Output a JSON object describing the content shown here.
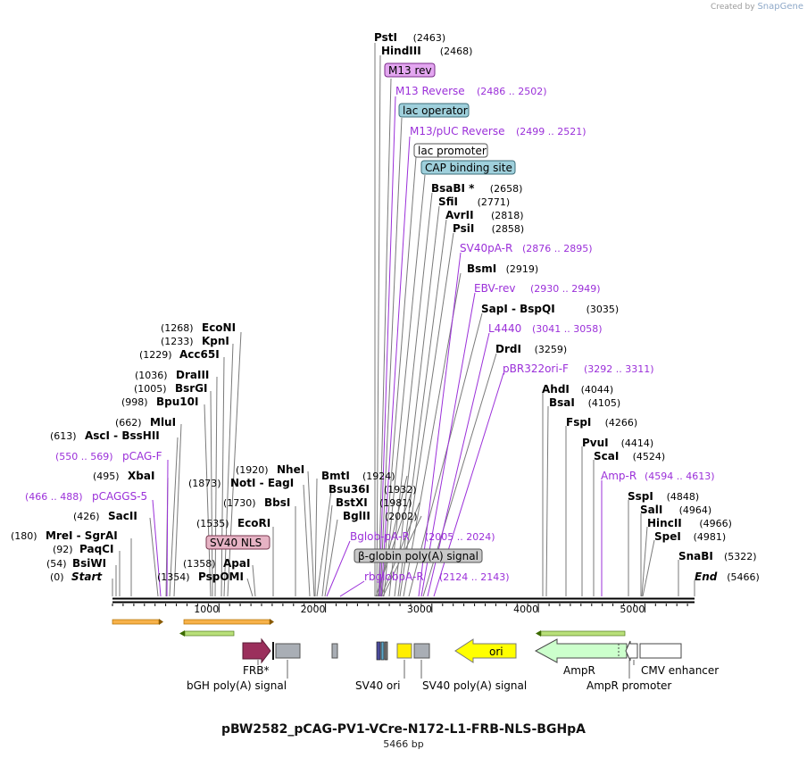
{
  "credit": {
    "prefix": "Created by",
    "brand": "SnapGene"
  },
  "plasmid": {
    "name": "pBW2582_pCAG-PV1-VCre-N172-L1-FRB-NLS-BGHpA",
    "length_label": "5466 bp",
    "length": 5466
  },
  "colors": {
    "enzyme": "#000000",
    "primer": "#9b30d9",
    "line": "#777777",
    "primer_line": "#9b30d9"
  },
  "ruler": {
    "ticks": [
      "1000",
      "2000",
      "3000",
      "4000",
      "5000"
    ]
  },
  "left_labels": [
    {
      "kind": "enzyme",
      "name": "Start",
      "pos": "(0)",
      "italic": true
    },
    {
      "kind": "enzyme",
      "name": "BsiWI",
      "pos": "(54)"
    },
    {
      "kind": "enzyme",
      "name": "PaqCI",
      "pos": "(92)"
    },
    {
      "kind": "enzyme",
      "name": "MreI  -  SgrAI",
      "pos": "(180)"
    },
    {
      "kind": "enzyme",
      "name": "SacII",
      "pos": "(426)"
    },
    {
      "kind": "primer",
      "name": "pCAGGS-5",
      "pos": "(466 .. 488)"
    },
    {
      "kind": "enzyme",
      "name": "XbaI",
      "pos": "(495)"
    },
    {
      "kind": "primer",
      "name": "pCAG-F",
      "pos": "(550 .. 569)"
    },
    {
      "kind": "enzyme",
      "name": "AscI  -  BssHII",
      "pos": "(613)"
    },
    {
      "kind": "enzyme",
      "name": "MluI",
      "pos": "(662)"
    },
    {
      "kind": "enzyme",
      "name": "Bpu10I",
      "pos": "(998)"
    },
    {
      "kind": "enzyme",
      "name": "BsrGI",
      "pos": "(1005)"
    },
    {
      "kind": "enzyme",
      "name": "DraIII",
      "pos": "(1036)"
    },
    {
      "kind": "enzyme",
      "name": "Acc65I",
      "pos": "(1229)"
    },
    {
      "kind": "enzyme",
      "name": "KpnI",
      "pos": "(1233)"
    },
    {
      "kind": "enzyme",
      "name": "EcoNI",
      "pos": "(1268)"
    },
    {
      "kind": "enzyme",
      "name": "PspOMI",
      "pos": "(1354)"
    },
    {
      "kind": "enzyme",
      "name": "ApaI",
      "pos": "(1358)"
    },
    {
      "kind": "enzyme",
      "name": "EcoRI",
      "pos": "(1535)"
    },
    {
      "kind": "enzyme",
      "name": "BbsI",
      "pos": "(1730)"
    },
    {
      "kind": "enzyme",
      "name": "NotI  -  EagI",
      "pos": "(1873)"
    },
    {
      "kind": "enzyme",
      "name": "NheI",
      "pos": "(1920)"
    }
  ],
  "center_labels": [
    {
      "kind": "enzyme",
      "name": "BmtI",
      "pos": "(1924)"
    },
    {
      "kind": "enzyme",
      "name": "Bsu36I",
      "pos": "(1932)"
    },
    {
      "kind": "enzyme",
      "name": "BstXI",
      "pos": "(1981)"
    },
    {
      "kind": "enzyme",
      "name": "BglII",
      "pos": "(2002)"
    }
  ],
  "right_labels": [
    {
      "kind": "enzyme",
      "name": "PstI",
      "pos": "(2463)"
    },
    {
      "kind": "enzyme",
      "name": "HindIII",
      "pos": "(2468)"
    },
    {
      "kind": "primer",
      "name": "M13 Reverse",
      "pos": "(2486 .. 2502)"
    },
    {
      "kind": "primer",
      "name": "M13/pUC Reverse",
      "pos": "(2499 .. 2521)"
    },
    {
      "kind": "enzyme",
      "name": "BsaBI *",
      "pos": "(2658)"
    },
    {
      "kind": "enzyme",
      "name": "SfiI",
      "pos": "(2771)"
    },
    {
      "kind": "enzyme",
      "name": "AvrII",
      "pos": "(2818)"
    },
    {
      "kind": "enzyme",
      "name": "PsiI",
      "pos": "(2858)"
    },
    {
      "kind": "primer",
      "name": "SV40pA-R",
      "pos": "(2876 .. 2895)"
    },
    {
      "kind": "enzyme",
      "name": "BsmI",
      "pos": "(2919)"
    },
    {
      "kind": "primer",
      "name": "EBV-rev",
      "pos": "(2930 .. 2949)"
    },
    {
      "kind": "enzyme",
      "name": "SapI  -  BspQI",
      "pos": "(3035)"
    },
    {
      "kind": "primer",
      "name": "L4440",
      "pos": "(3041 .. 3058)"
    },
    {
      "kind": "enzyme",
      "name": "DrdI",
      "pos": "(3259)"
    },
    {
      "kind": "primer",
      "name": "pBR322ori-F",
      "pos": "(3292 .. 3311)"
    },
    {
      "kind": "primer",
      "name": "Bglob-pA-R",
      "pos": "(2005 .. 2024)"
    },
    {
      "kind": "primer",
      "name": "rbglobpA-R",
      "pos": "(2124 .. 2143)"
    },
    {
      "kind": "enzyme",
      "name": "AhdI",
      "pos": "(4044)"
    },
    {
      "kind": "enzyme",
      "name": "BsaI",
      "pos": "(4105)"
    },
    {
      "kind": "enzyme",
      "name": "FspI",
      "pos": "(4266)"
    },
    {
      "kind": "enzyme",
      "name": "PvuI",
      "pos": "(4414)"
    },
    {
      "kind": "enzyme",
      "name": "ScaI",
      "pos": "(4524)"
    },
    {
      "kind": "primer",
      "name": "Amp-R",
      "pos": "(4594 .. 4613)"
    },
    {
      "kind": "enzyme",
      "name": "SspI",
      "pos": "(4848)"
    },
    {
      "kind": "enzyme",
      "name": "SalI",
      "pos": "(4964)"
    },
    {
      "kind": "enzyme",
      "name": "HincII",
      "pos": "(4966)"
    },
    {
      "kind": "enzyme",
      "name": "SpeI",
      "pos": "(4981)"
    },
    {
      "kind": "enzyme",
      "name": "SnaBI",
      "pos": "(5322)"
    },
    {
      "kind": "enzyme",
      "name": "End",
      "pos": "(5466)",
      "italic": true
    }
  ],
  "boxed_labels": [
    {
      "name": "M13 rev",
      "fill": "#e3a6f0",
      "stroke": "#7a2a8a"
    },
    {
      "name": "lac operator",
      "fill": "#9fd0dc",
      "stroke": "#3c6e7a"
    },
    {
      "name": "lac promoter",
      "fill": "#ffffff",
      "stroke": "#555555"
    },
    {
      "name": "CAP binding site",
      "fill": "#9fd0dc",
      "stroke": "#3c6e7a"
    },
    {
      "name": "SV40 NLS",
      "fill": "#e6b3c4",
      "stroke": "#7a3a50"
    },
    {
      "name": "β-globin poly(A) signal",
      "fill": "#c8c8c8",
      "stroke": "#555555"
    }
  ],
  "features": [
    {
      "name": "FRB*",
      "color": "#9b2f5c"
    },
    {
      "name": "bGH poly(A) signal",
      "color": "#a9aeb5"
    },
    {
      "name": "SV40 ori",
      "color": "#ffee00"
    },
    {
      "name": "SV40 poly(A) signal",
      "color": "#a9aeb5"
    },
    {
      "name": "ori",
      "color": "#ffff00"
    },
    {
      "name": "AmpR",
      "color": "#ccffcc"
    },
    {
      "name": "AmpR promoter",
      "color": "#ffffff"
    },
    {
      "name": "CMV enhancer",
      "color": "#ffffff"
    }
  ]
}
